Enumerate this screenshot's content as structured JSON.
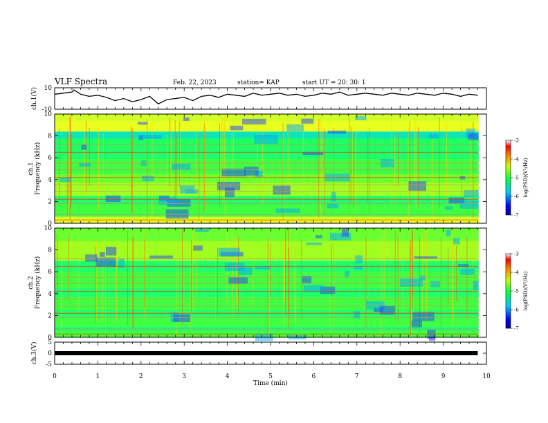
{
  "header": {
    "title": "VLF Spectra",
    "date": "Feb. 22, 2023",
    "station": "station= KAP",
    "start": "start UT =   20: 30: 1"
  },
  "chart_data": [
    {
      "id": "ch1-waveform",
      "type": "line",
      "ylabel": "ch.1(V)",
      "ylim": [
        -10,
        10
      ],
      "y_ticks": [
        "10",
        "-10"
      ],
      "xlim": [
        0,
        10
      ],
      "x": [
        0,
        0.2,
        0.4,
        0.45,
        0.6,
        0.8,
        1.0,
        1.2,
        1.4,
        1.6,
        1.8,
        2.0,
        2.2,
        2.4,
        2.6,
        2.8,
        3.0,
        3.2,
        3.4,
        3.6,
        3.8,
        4.0,
        4.2,
        4.4,
        4.6,
        4.8,
        5.0,
        5.2,
        5.4,
        5.6,
        5.8,
        6.0,
        6.2,
        6.4,
        6.6,
        6.8,
        7.0,
        7.2,
        7.4,
        7.6,
        7.8,
        8.0,
        8.2,
        8.4,
        8.6,
        8.8,
        9.0,
        9.2,
        9.4,
        9.6,
        9.8
      ],
      "y": [
        4,
        5,
        6,
        8,
        4,
        2,
        3,
        1,
        -2,
        0,
        -3,
        -1,
        2,
        -5,
        -1,
        0,
        1,
        -2,
        2,
        3,
        1,
        4,
        3,
        2,
        5,
        3,
        4,
        5,
        3,
        4,
        2,
        3,
        5,
        4,
        6,
        3,
        4,
        5,
        4,
        3,
        5,
        4,
        3,
        5,
        4,
        3,
        5,
        4,
        2,
        4,
        3
      ]
    },
    {
      "id": "ch1-spectrogram",
      "type": "heatmap",
      "ylabel": "ch.1\nFrequency (kHz)",
      "y_ticks": [
        "0",
        "2",
        "4",
        "6",
        "8",
        "10"
      ],
      "ylim": [
        0,
        10
      ],
      "xlim": [
        0,
        10
      ],
      "colorbar": {
        "label": "log(PSD)(V²/Hz)",
        "range": [
          -7,
          -3
        ],
        "ticks": [
          "-3",
          "-4",
          "-5",
          "-6",
          "-7"
        ]
      },
      "bands_khz": [
        {
          "range": [
            0,
            0.6
          ],
          "level": "high"
        },
        {
          "range": [
            0.6,
            2.5
          ],
          "level": "mid"
        },
        {
          "range": [
            2.5,
            4.5
          ],
          "level": "mid-high"
        },
        {
          "range": [
            4.5,
            6.8
          ],
          "level": "mid"
        },
        {
          "range": [
            6.8,
            8.4
          ],
          "level": "low-mid"
        },
        {
          "range": [
            8.4,
            10
          ],
          "level": "high"
        }
      ]
    },
    {
      "id": "ch2-spectrogram",
      "type": "heatmap",
      "ylabel": "ch.2\nFrequency (kHz)",
      "y_ticks": [
        "0",
        "2",
        "4",
        "6",
        "8",
        "10"
      ],
      "ylim": [
        0,
        10
      ],
      "xlim": [
        0,
        10
      ],
      "colorbar": {
        "label": "log(PSD)(V²/Hz)",
        "range": [
          -7,
          -3
        ],
        "ticks": [
          "-3",
          "-4",
          "-5",
          "-6",
          "-7"
        ]
      },
      "bands_khz": [
        {
          "range": [
            0,
            1.0
          ],
          "level": "mid"
        },
        {
          "range": [
            1.0,
            2.5
          ],
          "level": "mid"
        },
        {
          "range": [
            2.5,
            4.5
          ],
          "level": "mid"
        },
        {
          "range": [
            4.5,
            7.0
          ],
          "level": "mid"
        },
        {
          "range": [
            7.0,
            10
          ],
          "level": "mid-high"
        }
      ]
    },
    {
      "id": "ch3-waveform",
      "type": "line",
      "ylabel": "ch.3(V)",
      "ylim": [
        -5,
        5
      ],
      "y_ticks": [
        "5",
        "0",
        "-5"
      ],
      "xlim": [
        0,
        10
      ],
      "x": [
        0,
        9.8
      ],
      "y": [
        0,
        0
      ]
    }
  ],
  "x_axis": {
    "label": "Time (min)",
    "ticks": [
      "0",
      "1",
      "2",
      "3",
      "4",
      "5",
      "6",
      "7",
      "8",
      "9",
      "10"
    ]
  }
}
